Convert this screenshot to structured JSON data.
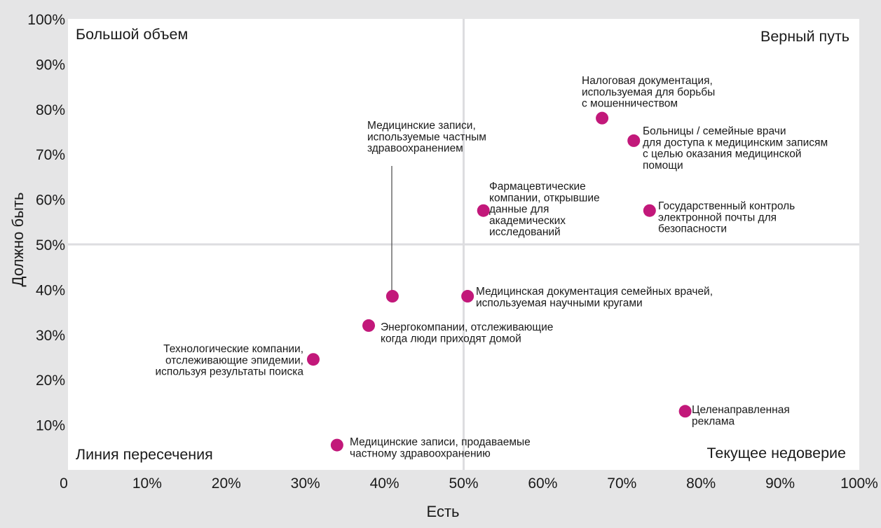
{
  "chart_data": {
    "type": "scatter",
    "xlabel": "Есть",
    "ylabel": "Должно быть",
    "xlim": [
      0,
      100
    ],
    "ylim": [
      0,
      100
    ],
    "x_ticks": [
      "0",
      "10%",
      "20%",
      "30%",
      "40%",
      "50%",
      "60%",
      "70%",
      "80%",
      "90%",
      "100%"
    ],
    "y_ticks": [
      "10%",
      "20%",
      "30%",
      "40%",
      "50%",
      "60%",
      "70%",
      "80%",
      "90%",
      "100%"
    ],
    "grid": false,
    "divider_x": 50,
    "divider_y": 50,
    "point_color": "#c2187a",
    "background_color": "#e5e5e6",
    "plot_color": "#ffffff",
    "quadrants": {
      "top_left": "Большой объем",
      "top_right": "Верный путь",
      "bottom_left": "Линия пересечения",
      "bottom_right": "Текущее недоверие"
    },
    "points": [
      {
        "x": 67.5,
        "y": 78,
        "label": [
          "Налоговая документация,",
          "используемая для борьбы",
          "с мошенничеством"
        ]
      },
      {
        "x": 71.5,
        "y": 73,
        "label": [
          "Больницы / семейные врачи",
          "для доступа к медицинским записям",
          "с целью оказания медицинской",
          "помощи"
        ]
      },
      {
        "x": 52.5,
        "y": 57.5,
        "label": [
          "Фармацевтические",
          "компании, открывшие",
          "данные для",
          "академических",
          "исследований"
        ]
      },
      {
        "x": 73.5,
        "y": 57.5,
        "label": [
          "Государственный контроль",
          "электронной почты для",
          "безопасности"
        ]
      },
      {
        "x": 41,
        "y": 38.5,
        "label": [
          "Медицинские записи,",
          "используемые частным",
          "здравоохранением"
        ]
      },
      {
        "x": 50.5,
        "y": 38.5,
        "label": [
          "Медицинская документация семейных врачей,",
          "используемая научными кругами"
        ]
      },
      {
        "x": 38,
        "y": 32,
        "label": [
          "Энергокомпании, отслеживающие",
          "когда люди приходят домой"
        ]
      },
      {
        "x": 31,
        "y": 24.5,
        "label": [
          "Технологические компании,",
          "отслеживающие эпидемии,",
          "используя результаты поиска"
        ]
      },
      {
        "x": 78,
        "y": 13,
        "label": [
          "Целенаправленная",
          "реклама"
        ]
      },
      {
        "x": 34,
        "y": 5.5,
        "label": [
          "Медицинские записи, продаваемые",
          "частному здравоохранению"
        ]
      }
    ]
  }
}
